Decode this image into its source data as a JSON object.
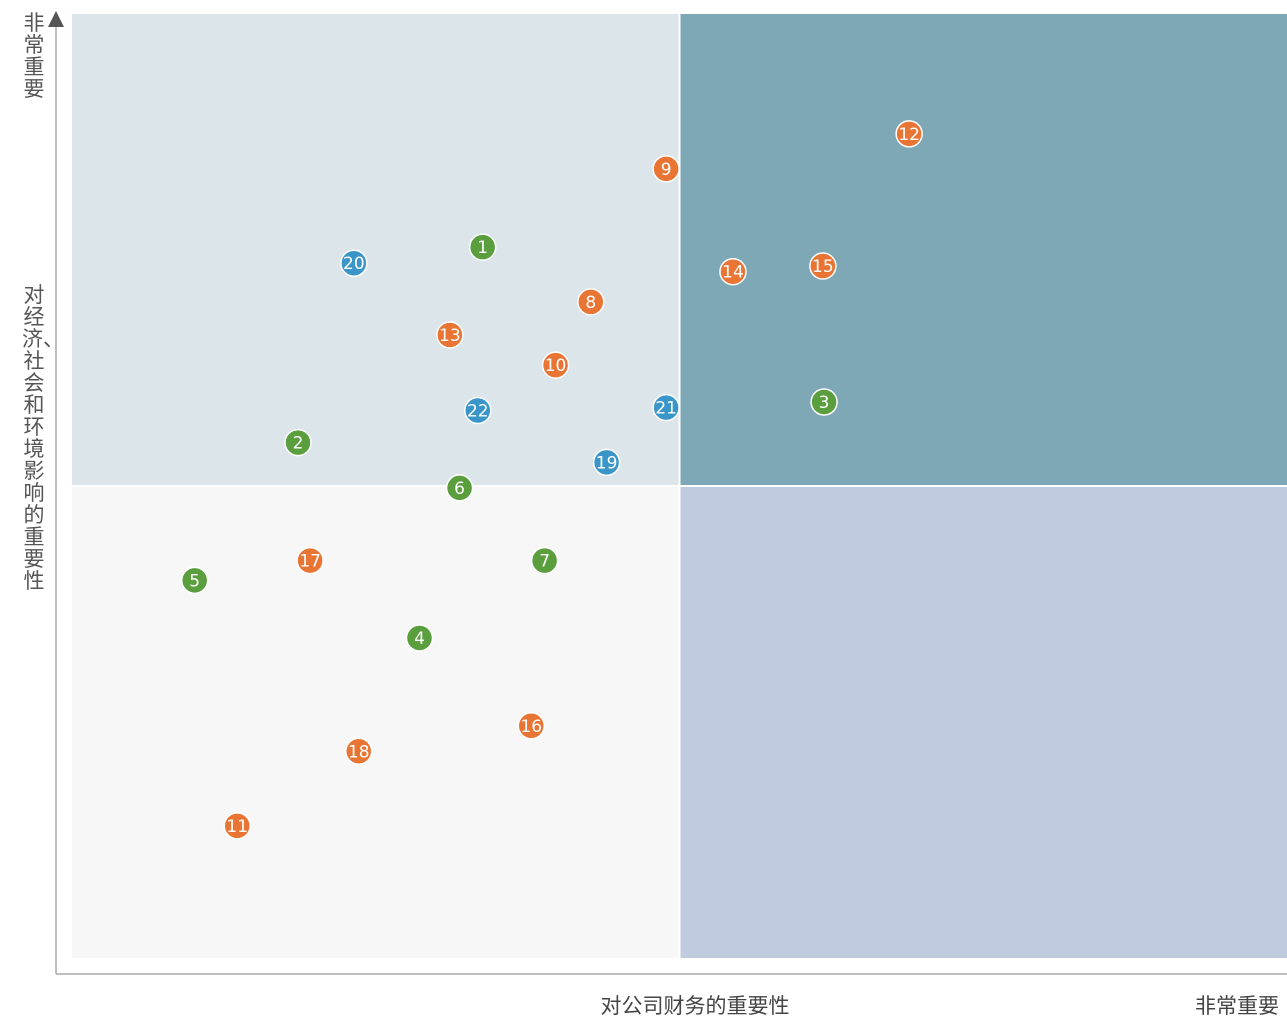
{
  "chart_data": {
    "type": "scatter",
    "title": "",
    "xlabel": "对公司财务的重要性",
    "ylabel": "对经济、社会和环境影响的重要性",
    "x_end_label": "非常重要",
    "y_end_label": "非常重要",
    "xlim": [
      0,
      100
    ],
    "ylim": [
      0,
      100
    ],
    "quadrant_split": {
      "x": 50,
      "y": 50
    },
    "quadrant_colors": {
      "top_left": "#dbe5ea",
      "top_right": "#7fa8b6",
      "bottom_left": "#f7f7f7",
      "bottom_right": "#c1cbdf"
    },
    "axis_color": "#aaaaaa",
    "series": [
      {
        "color": "#5a9e3d",
        "points": [
          {
            "label": "1",
            "x": 33.8,
            "y": 75.3
          },
          {
            "label": "2",
            "x": 18.6,
            "y": 54.6
          },
          {
            "label": "3",
            "x": 61.9,
            "y": 58.9
          },
          {
            "label": "4",
            "x": 28.6,
            "y": 33.9
          },
          {
            "label": "5",
            "x": 10.1,
            "y": 40.0
          },
          {
            "label": "6",
            "x": 31.9,
            "y": 49.8
          },
          {
            "label": "7",
            "x": 38.9,
            "y": 42.1
          }
        ]
      },
      {
        "color": "#e87534",
        "points": [
          {
            "label": "8",
            "x": 42.7,
            "y": 69.5
          },
          {
            "label": "9",
            "x": 48.9,
            "y": 83.6
          },
          {
            "label": "10",
            "x": 39.8,
            "y": 62.8
          },
          {
            "label": "11",
            "x": 13.6,
            "y": 14.0
          },
          {
            "label": "12",
            "x": 68.9,
            "y": 87.3
          },
          {
            "label": "13",
            "x": 31.1,
            "y": 66.0
          },
          {
            "label": "14",
            "x": 54.4,
            "y": 72.7
          },
          {
            "label": "15",
            "x": 61.8,
            "y": 73.3
          },
          {
            "label": "16",
            "x": 37.8,
            "y": 24.6
          },
          {
            "label": "17",
            "x": 19.6,
            "y": 42.1
          },
          {
            "label": "18",
            "x": 23.6,
            "y": 21.9
          }
        ]
      },
      {
        "color": "#3a96c8",
        "points": [
          {
            "label": "19",
            "x": 44.0,
            "y": 52.5
          },
          {
            "label": "20",
            "x": 23.2,
            "y": 73.6
          },
          {
            "label": "21",
            "x": 48.9,
            "y": 58.3
          },
          {
            "label": "22",
            "x": 33.4,
            "y": 58.0
          }
        ]
      }
    ]
  }
}
